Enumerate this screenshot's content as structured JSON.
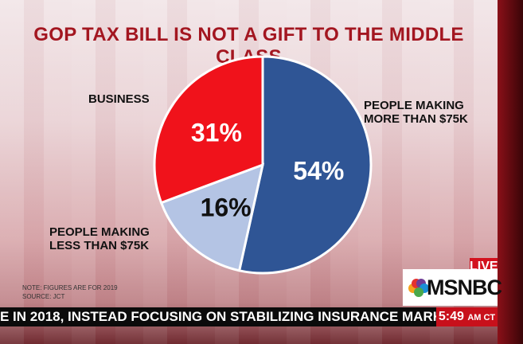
{
  "chart_data": {
    "type": "pie",
    "title": "GOP TAX BILL IS NOT A GIFT TO THE MIDDLE CLASS",
    "slices": [
      {
        "label": "PEOPLE MAKING MORE THAN $75K",
        "value": 54,
        "value_label": "54%",
        "color": "#2f5595"
      },
      {
        "label": "PEOPLE MAKING LESS THAN $75K",
        "value": 16,
        "value_label": "16%",
        "color": "#b4c4e4"
      },
      {
        "label": "BUSINESS",
        "value": 31,
        "value_label": "31%",
        "color": "#f0121b"
      }
    ],
    "notes": [
      "NOTE: FIGURES ARE FOR 2019",
      "SOURCE: JCT"
    ]
  },
  "broadcast": {
    "live": "LIVE",
    "network": "MSNBC",
    "ticker": "E IN 2018, INSTEAD FOCUSING ON STABILIZING INSURANCE MARKETS AN",
    "time": "5:49",
    "time_suffix": "AM CT"
  }
}
